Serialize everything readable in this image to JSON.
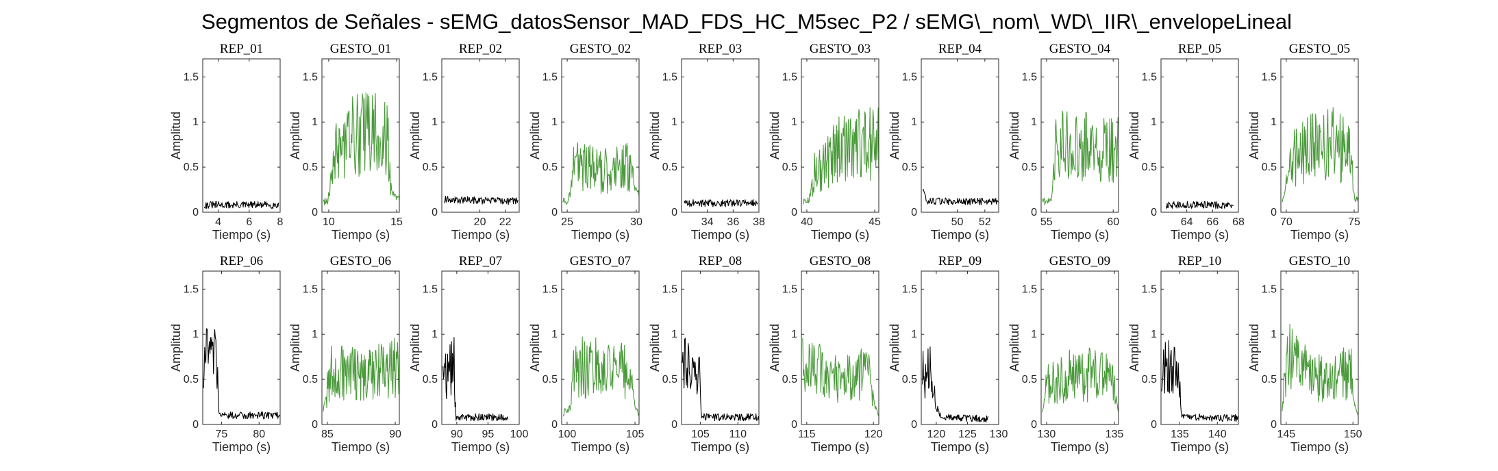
{
  "figure": {
    "title": "Segmentos de Señales - sEMG_datosSensor_MAD_FDS_HC_M5sec_P2 / sEMG\\_nom\\_WD\\_IIR\\_envelopeLineal"
  },
  "colors": {
    "rep": "#000000",
    "gesto": "#4a9a3a",
    "axis": "#262626"
  },
  "chart_data": [
    {
      "type": "line",
      "title": "REP_01",
      "xlabel": "Tiempo (s)",
      "ylabel": "Amplitud",
      "xlim": [
        3,
        8
      ],
      "ylim": [
        0,
        1.7
      ],
      "xticks": [
        4,
        6,
        8
      ],
      "yticks": [
        0,
        0.5,
        1,
        1.5
      ],
      "color": "rep",
      "x_range": [
        3.1,
        7.9
      ],
      "profile": [
        [
          0,
          0.08
        ],
        [
          1,
          0.08
        ]
      ]
    },
    {
      "type": "line",
      "title": "GESTO_01",
      "xlabel": "Tiempo (s)",
      "ylabel": "Amplitud",
      "xlim": [
        9.5,
        15.2
      ],
      "ylim": [
        0,
        1.7
      ],
      "xticks": [
        10,
        15
      ],
      "yticks": [
        0,
        0.5,
        1,
        1.5
      ],
      "color": "gesto",
      "x_range": [
        9.6,
        15.2
      ],
      "profile": [
        [
          0,
          0.12
        ],
        [
          0.06,
          0.12
        ],
        [
          0.1,
          0.55
        ],
        [
          0.3,
          0.8
        ],
        [
          0.6,
          0.9
        ],
        [
          0.85,
          0.85
        ],
        [
          0.9,
          0.2
        ],
        [
          1,
          0.15
        ]
      ]
    },
    {
      "type": "line",
      "title": "REP_02",
      "xlabel": "Tiempo (s)",
      "ylabel": "Amplitud",
      "xlim": [
        17,
        23.1
      ],
      "ylim": [
        0,
        1.7
      ],
      "xticks": [
        20,
        22
      ],
      "yticks": [
        0,
        0.5,
        1,
        1.5
      ],
      "color": "rep",
      "x_range": [
        17.2,
        23.0
      ],
      "profile": [
        [
          0,
          0.14
        ],
        [
          1,
          0.12
        ]
      ]
    },
    {
      "type": "line",
      "title": "GESTO_02",
      "xlabel": "Tiempo (s)",
      "ylabel": "Amplitud",
      "xlim": [
        24.6,
        30.2
      ],
      "ylim": [
        0,
        1.7
      ],
      "xticks": [
        25,
        30
      ],
      "yticks": [
        0,
        0.5,
        1,
        1.5
      ],
      "color": "gesto",
      "x_range": [
        24.7,
        30.2
      ],
      "profile": [
        [
          0,
          0.12
        ],
        [
          0.07,
          0.12
        ],
        [
          0.12,
          0.55
        ],
        [
          0.5,
          0.45
        ],
        [
          0.85,
          0.5
        ],
        [
          0.93,
          0.3
        ],
        [
          1,
          0.2
        ]
      ]
    },
    {
      "type": "line",
      "title": "REP_03",
      "xlabel": "Tiempo (s)",
      "ylabel": "Amplitud",
      "xlim": [
        32,
        38
      ],
      "ylim": [
        0,
        1.7
      ],
      "xticks": [
        34,
        36,
        38
      ],
      "yticks": [
        0,
        0.5,
        1,
        1.5
      ],
      "color": "rep",
      "x_range": [
        32.2,
        37.9
      ],
      "profile": [
        [
          0,
          0.1
        ],
        [
          1,
          0.1
        ]
      ]
    },
    {
      "type": "line",
      "title": "GESTO_03",
      "xlabel": "Tiempo (s)",
      "ylabel": "Amplitud",
      "xlim": [
        39.6,
        45.3
      ],
      "ylim": [
        0,
        1.7
      ],
      "xticks": [
        40,
        45
      ],
      "yticks": [
        0,
        0.5,
        1,
        1.5
      ],
      "color": "gesto",
      "x_range": [
        39.7,
        45.3
      ],
      "profile": [
        [
          0,
          0.12
        ],
        [
          0.08,
          0.12
        ],
        [
          0.15,
          0.45
        ],
        [
          0.5,
          0.7
        ],
        [
          1,
          0.8
        ]
      ]
    },
    {
      "type": "line",
      "title": "REP_04",
      "xlabel": "Tiempo (s)",
      "ylabel": "Amplitud",
      "xlim": [
        47.4,
        53
      ],
      "ylim": [
        0,
        1.7
      ],
      "xticks": [
        50,
        52
      ],
      "yticks": [
        0,
        0.5,
        1,
        1.5
      ],
      "color": "rep",
      "x_range": [
        47.5,
        53
      ],
      "profile": [
        [
          0,
          0.25
        ],
        [
          0.05,
          0.12
        ],
        [
          1,
          0.12
        ]
      ]
    },
    {
      "type": "line",
      "title": "GESTO_04",
      "xlabel": "Tiempo (s)",
      "ylabel": "Amplitud",
      "xlim": [
        54.6,
        60.4
      ],
      "ylim": [
        0,
        1.7
      ],
      "xticks": [
        55,
        60
      ],
      "yticks": [
        0,
        0.5,
        1,
        1.5
      ],
      "color": "gesto",
      "x_range": [
        54.7,
        60.4
      ],
      "profile": [
        [
          0,
          0.12
        ],
        [
          0.12,
          0.12
        ],
        [
          0.18,
          0.75
        ],
        [
          0.6,
          0.75
        ],
        [
          1,
          0.7
        ]
      ]
    },
    {
      "type": "line",
      "title": "REP_05",
      "xlabel": "Tiempo (s)",
      "ylabel": "Amplitud",
      "xlim": [
        62,
        68
      ],
      "ylim": [
        0,
        1.7
      ],
      "xticks": [
        64,
        66,
        68
      ],
      "yticks": [
        0,
        0.5,
        1,
        1.5
      ],
      "color": "rep",
      "x_range": [
        62.4,
        67.6
      ],
      "profile": [
        [
          0,
          0.08
        ],
        [
          1,
          0.08
        ]
      ]
    },
    {
      "type": "line",
      "title": "GESTO_05",
      "xlabel": "Tiempo (s)",
      "ylabel": "Amplitud",
      "xlim": [
        69.6,
        75.3
      ],
      "ylim": [
        0,
        1.7
      ],
      "xticks": [
        70,
        75
      ],
      "yticks": [
        0,
        0.5,
        1,
        1.5
      ],
      "color": "gesto",
      "x_range": [
        69.7,
        75.3
      ],
      "profile": [
        [
          0,
          0.1
        ],
        [
          0.05,
          0.3
        ],
        [
          0.12,
          0.6
        ],
        [
          0.6,
          0.8
        ],
        [
          0.9,
          0.65
        ],
        [
          0.95,
          0.15
        ],
        [
          1,
          0.12
        ]
      ]
    },
    {
      "type": "line",
      "title": "REP_06",
      "xlabel": "Tiempo (s)",
      "ylabel": "Amplitud",
      "xlim": [
        72.5,
        82.8
      ],
      "ylim": [
        0,
        1.7
      ],
      "xticks": [
        75,
        80
      ],
      "yticks": [
        0,
        0.5,
        1,
        1.5
      ],
      "color": "rep",
      "x_range": [
        72.6,
        82.8
      ],
      "profile": [
        [
          0,
          0.75
        ],
        [
          0.18,
          0.7
        ],
        [
          0.2,
          0.1
        ],
        [
          1,
          0.1
        ]
      ]
    },
    {
      "type": "line",
      "title": "GESTO_06",
      "xlabel": "Tiempo (s)",
      "ylabel": "Amplitud",
      "xlim": [
        84.6,
        90.3
      ],
      "ylim": [
        0,
        1.7
      ],
      "xticks": [
        85,
        90
      ],
      "yticks": [
        0,
        0.5,
        1,
        1.5
      ],
      "color": "gesto",
      "x_range": [
        84.7,
        90.3
      ],
      "profile": [
        [
          0,
          0.15
        ],
        [
          0.1,
          0.6
        ],
        [
          0.5,
          0.55
        ],
        [
          0.9,
          0.6
        ],
        [
          1,
          0.7
        ]
      ]
    },
    {
      "type": "line",
      "title": "REP_07",
      "xlabel": "Tiempo (s)",
      "ylabel": "Amplitud",
      "xlim": [
        87.6,
        100
      ],
      "ylim": [
        0,
        1.7
      ],
      "xticks": [
        90,
        95,
        100
      ],
      "yticks": [
        0,
        0.5,
        1,
        1.5
      ],
      "color": "rep",
      "x_range": [
        87.8,
        98.2
      ],
      "profile": [
        [
          0,
          0.5
        ],
        [
          0.17,
          0.65
        ],
        [
          0.2,
          0.08
        ],
        [
          1,
          0.08
        ]
      ]
    },
    {
      "type": "line",
      "title": "GESTO_07",
      "xlabel": "Tiempo (s)",
      "ylabel": "Amplitud",
      "xlim": [
        99.6,
        105.3
      ],
      "ylim": [
        0,
        1.7
      ],
      "xticks": [
        100,
        105
      ],
      "yticks": [
        0,
        0.5,
        1,
        1.5
      ],
      "color": "gesto",
      "x_range": [
        99.7,
        105.3
      ],
      "profile": [
        [
          0,
          0.12
        ],
        [
          0.1,
          0.2
        ],
        [
          0.15,
          0.65
        ],
        [
          0.85,
          0.6
        ],
        [
          0.95,
          0.2
        ],
        [
          1,
          0.12
        ]
      ]
    },
    {
      "type": "line",
      "title": "REP_08",
      "xlabel": "Tiempo (s)",
      "ylabel": "Amplitud",
      "xlim": [
        102.5,
        112.8
      ],
      "ylim": [
        0,
        1.7
      ],
      "xticks": [
        105,
        110
      ],
      "yticks": [
        0,
        0.5,
        1,
        1.5
      ],
      "color": "rep",
      "x_range": [
        102.6,
        112.8
      ],
      "profile": [
        [
          0,
          0.65
        ],
        [
          0.22,
          0.6
        ],
        [
          0.25,
          0.08
        ],
        [
          1,
          0.08
        ]
      ]
    },
    {
      "type": "line",
      "title": "GESTO_08",
      "xlabel": "Tiempo (s)",
      "ylabel": "Amplitud",
      "xlim": [
        114.6,
        120.4
      ],
      "ylim": [
        0,
        1.7
      ],
      "xticks": [
        115,
        120
      ],
      "yticks": [
        0,
        0.5,
        1,
        1.5
      ],
      "color": "gesto",
      "x_range": [
        114.7,
        120.4
      ],
      "profile": [
        [
          0,
          0.65
        ],
        [
          0.5,
          0.5
        ],
        [
          0.85,
          0.6
        ],
        [
          0.95,
          0.2
        ],
        [
          1,
          0.12
        ]
      ]
    },
    {
      "type": "line",
      "title": "REP_09",
      "xlabel": "Tiempo (s)",
      "ylabel": "Amplitud",
      "xlim": [
        117.6,
        130
      ],
      "ylim": [
        0,
        1.7
      ],
      "xticks": [
        120,
        125,
        130
      ],
      "yticks": [
        0,
        0.5,
        1,
        1.5
      ],
      "color": "rep",
      "x_range": [
        117.8,
        128.3
      ],
      "profile": [
        [
          0,
          0.55
        ],
        [
          0.15,
          0.6
        ],
        [
          0.2,
          0.2
        ],
        [
          0.3,
          0.08
        ],
        [
          1,
          0.06
        ]
      ]
    },
    {
      "type": "line",
      "title": "GESTO_09",
      "xlabel": "Tiempo (s)",
      "ylabel": "Amplitud",
      "xlim": [
        129.6,
        135.3
      ],
      "ylim": [
        0,
        1.7
      ],
      "xticks": [
        130,
        135
      ],
      "yticks": [
        0,
        0.5,
        1,
        1.5
      ],
      "color": "gesto",
      "x_range": [
        129.7,
        135.3
      ],
      "profile": [
        [
          0,
          0.12
        ],
        [
          0.06,
          0.5
        ],
        [
          0.5,
          0.55
        ],
        [
          0.92,
          0.55
        ],
        [
          1,
          0.15
        ]
      ]
    },
    {
      "type": "line",
      "title": "REP_10",
      "xlabel": "Tiempo (s)",
      "ylabel": "Amplitud",
      "xlim": [
        132.5,
        142.8
      ],
      "ylim": [
        0,
        1.7
      ],
      "xticks": [
        135,
        140
      ],
      "yticks": [
        0,
        0.5,
        1,
        1.5
      ],
      "color": "rep",
      "x_range": [
        132.6,
        142.8
      ],
      "profile": [
        [
          0,
          0.65
        ],
        [
          0.22,
          0.6
        ],
        [
          0.26,
          0.08
        ],
        [
          1,
          0.07
        ]
      ]
    },
    {
      "type": "line",
      "title": "GESTO_10",
      "xlabel": "Tiempo (s)",
      "ylabel": "Amplitud",
      "xlim": [
        144.6,
        150.4
      ],
      "ylim": [
        0,
        1.7
      ],
      "xticks": [
        145,
        150
      ],
      "yticks": [
        0,
        0.5,
        1,
        1.5
      ],
      "color": "gesto",
      "x_range": [
        144.7,
        150.4
      ],
      "profile": [
        [
          0,
          0.15
        ],
        [
          0.06,
          0.75
        ],
        [
          0.4,
          0.55
        ],
        [
          0.7,
          0.55
        ],
        [
          0.9,
          0.6
        ],
        [
          0.96,
          0.2
        ],
        [
          1,
          0.12
        ]
      ]
    }
  ]
}
